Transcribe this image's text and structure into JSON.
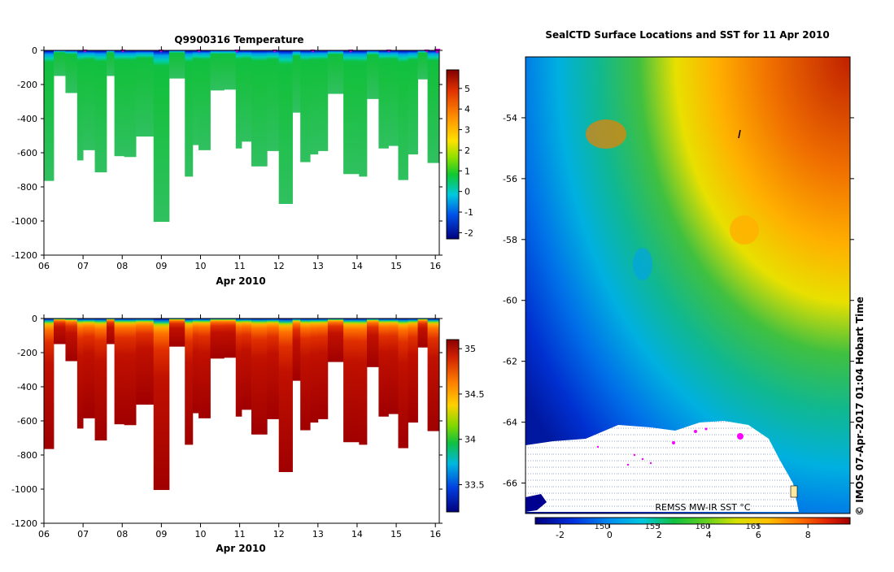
{
  "chart_data": [
    {
      "type": "heatmap",
      "title": "Q9900316  Temperature",
      "xlabel": "Apr 2010",
      "ylabel": "",
      "ylim": [
        -1200,
        0
      ],
      "xlim": [
        6,
        16.1
      ],
      "x_ticks": [
        "06",
        "07",
        "08",
        "09",
        "10",
        "11",
        "12",
        "13",
        "14",
        "15",
        "16"
      ],
      "y_ticks": [
        "0",
        "-200",
        "-400",
        "-600",
        "-800",
        "-1000",
        "-1200"
      ],
      "colorbar": {
        "range": [
          -2.3,
          5.9
        ],
        "ticks": [
          "5",
          "4",
          "3",
          "2",
          "1",
          "0",
          "-1",
          "-2"
        ]
      },
      "profiles": [
        {
          "start": 6.0,
          "end": 6.25,
          "depth": 765
        },
        {
          "start": 6.25,
          "end": 6.55,
          "depth": 150
        },
        {
          "start": 6.55,
          "end": 6.85,
          "depth": 250
        },
        {
          "start": 6.85,
          "end": 7.0,
          "depth": 645
        },
        {
          "start": 7.0,
          "end": 7.3,
          "depth": 585
        },
        {
          "start": 7.3,
          "end": 7.6,
          "depth": 715
        },
        {
          "start": 7.6,
          "end": 7.8,
          "depth": 150
        },
        {
          "start": 7.8,
          "end": 8.05,
          "depth": 620
        },
        {
          "start": 8.05,
          "end": 8.35,
          "depth": 625
        },
        {
          "start": 8.35,
          "end": 8.8,
          "depth": 505
        },
        {
          "start": 8.8,
          "end": 9.2,
          "depth": 1005
        },
        {
          "start": 9.2,
          "end": 9.6,
          "depth": 165
        },
        {
          "start": 9.6,
          "end": 9.8,
          "depth": 740
        },
        {
          "start": 9.8,
          "end": 9.95,
          "depth": 555
        },
        {
          "start": 9.95,
          "end": 10.25,
          "depth": 585
        },
        {
          "start": 10.25,
          "end": 10.6,
          "depth": 235
        },
        {
          "start": 10.6,
          "end": 10.9,
          "depth": 230
        },
        {
          "start": 10.9,
          "end": 11.05,
          "depth": 575
        },
        {
          "start": 11.05,
          "end": 11.3,
          "depth": 535
        },
        {
          "start": 11.3,
          "end": 11.7,
          "depth": 680
        },
        {
          "start": 11.7,
          "end": 12.0,
          "depth": 590
        },
        {
          "start": 12.0,
          "end": 12.35,
          "depth": 900
        },
        {
          "start": 12.35,
          "end": 12.55,
          "depth": 365
        },
        {
          "start": 12.55,
          "end": 12.8,
          "depth": 655
        },
        {
          "start": 12.8,
          "end": 13.0,
          "depth": 610
        },
        {
          "start": 13.0,
          "end": 13.25,
          "depth": 590
        },
        {
          "start": 13.25,
          "end": 13.65,
          "depth": 255
        },
        {
          "start": 13.65,
          "end": 14.05,
          "depth": 725
        },
        {
          "start": 14.05,
          "end": 14.25,
          "depth": 740
        },
        {
          "start": 14.25,
          "end": 14.55,
          "depth": 285
        },
        {
          "start": 14.55,
          "end": 14.8,
          "depth": 575
        },
        {
          "start": 14.8,
          "end": 15.05,
          "depth": 560
        },
        {
          "start": 15.05,
          "end": 15.3,
          "depth": 760
        },
        {
          "start": 15.3,
          "end": 15.55,
          "depth": 610
        },
        {
          "start": 15.55,
          "end": 15.8,
          "depth": 170
        },
        {
          "start": 15.8,
          "end": 16.1,
          "depth": 660
        }
      ],
      "annotations": "magenta triangles at top mark profile surfacings"
    },
    {
      "type": "heatmap",
      "title": "",
      "xlabel": "Apr 2010",
      "ylabel": "",
      "ylim": [
        -1200,
        0
      ],
      "xlim": [
        6,
        16.1
      ],
      "x_ticks": [
        "06",
        "07",
        "08",
        "09",
        "10",
        "11",
        "12",
        "13",
        "14",
        "15",
        "16"
      ],
      "y_ticks": [
        "0",
        "-200",
        "-400",
        "-600",
        "-800",
        "-1000",
        "-1200"
      ],
      "colorbar": {
        "range": [
          33.2,
          35.1
        ],
        "ticks": [
          "35",
          "34.5",
          "34",
          "33.5"
        ]
      },
      "profiles_same_as": "temperature panel"
    },
    {
      "type": "heatmap",
      "title": "SealCTD Surface Locations and SST for 11 Apr 2010",
      "xlabel": "",
      "ylabel": "",
      "ylim": [
        -67,
        -52
      ],
      "y_ticks": [
        "-54",
        "-56",
        "-58",
        "-60",
        "-62",
        "-64",
        "-66"
      ],
      "colorbar": {
        "label": "REMSS MW-IR SST °C",
        "range": [
          -3,
          9.7
        ],
        "ticks": [
          "-2",
          "0",
          "2",
          "4",
          "6",
          "8"
        ],
        "lon_ticks": [
          "150",
          "155",
          "160",
          "165"
        ]
      }
    }
  ],
  "watermark": "© IMOS 07-Apr-2017 01:04 Hobart Time"
}
